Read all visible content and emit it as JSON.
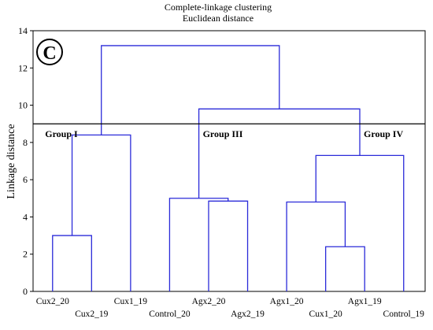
{
  "chart_data": {
    "type": "dendrogram",
    "title": "Complete-linkage clustering",
    "subtitle": "Euclidean distance",
    "ylabel": "Linkage distance",
    "ylim": [
      0,
      14
    ],
    "yticks": [
      "0",
      "2",
      "4",
      "6",
      "8",
      "10",
      "12",
      "14"
    ],
    "panel_label": "C",
    "cut_height": 9.0,
    "leaves": [
      "Cux2_20",
      "Cux2_19",
      "Cux1_19",
      "Control_20",
      "Agx2_20",
      "Agx2_19",
      "Agx1_20",
      "Cux1_20",
      "Agx1_19",
      "Control_19"
    ],
    "merges": [
      {
        "id": "m1",
        "left": "Cux2_20",
        "right": "Cux2_19",
        "height": 3.0
      },
      {
        "id": "m2",
        "left": "m1",
        "right": "Cux1_19",
        "height": 8.4
      },
      {
        "id": "m3",
        "left": "Agx2_20",
        "right": "Agx2_19",
        "height": 4.85
      },
      {
        "id": "m4",
        "left": "Control_20",
        "right": "m3",
        "height": 5.0
      },
      {
        "id": "m5",
        "left": "Cux1_20",
        "right": "Agx1_19",
        "height": 2.4
      },
      {
        "id": "m6",
        "left": "Agx1_20",
        "right": "m5",
        "height": 4.8
      },
      {
        "id": "m7",
        "left": "m6",
        "right": "Control_19",
        "height": 7.3
      },
      {
        "id": "m8",
        "left": "m4",
        "right": "m7",
        "height": 9.8
      },
      {
        "id": "m9",
        "left": "m2",
        "right": "m8",
        "height": 13.2
      }
    ],
    "groups": [
      {
        "label": "Group I",
        "cluster": "m2"
      },
      {
        "label": "Group III",
        "cluster": "m4"
      },
      {
        "label": "Group IV",
        "cluster": "m7"
      }
    ]
  }
}
